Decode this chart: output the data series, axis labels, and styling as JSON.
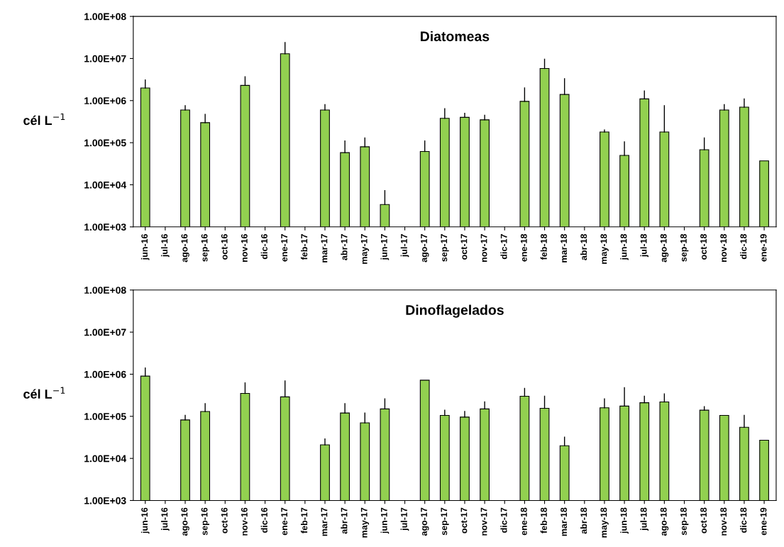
{
  "chart_data": [
    {
      "type": "bar",
      "title": "Diatomeas",
      "ylabel": "cél L$^{−1}$",
      "log": true,
      "color": "#92d050",
      "grid": false,
      "legend": false,
      "categories": [
        "jun-16",
        "jul-16",
        "ago-16",
        "sep-16",
        "oct-16",
        "nov-16",
        "dic-16",
        "ene-17",
        "feb-17",
        "mar-17",
        "abr-17",
        "may-17",
        "jun-17",
        "jul-17",
        "ago-17",
        "sep-17",
        "oct-17",
        "nov-17",
        "dic-17",
        "ene-18",
        "feb-18",
        "mar-18",
        "abr-18",
        "may-18",
        "jun-18",
        "jul-18",
        "ago-18",
        "sep-18",
        "oct-18",
        "nov-18",
        "dic-18",
        "ene-19"
      ],
      "values": [
        2000000,
        null,
        600000,
        300000,
        null,
        2300000,
        null,
        13000000,
        null,
        600000,
        58000,
        80000,
        3400,
        null,
        62000,
        380000,
        400000,
        350000,
        null,
        960000,
        5800000,
        1400000,
        null,
        180000,
        50000,
        1100000,
        180000,
        null,
        68000,
        600000,
        700000,
        37000
      ],
      "errors": [
        [
          2000000,
          3100000
        ],
        null,
        [
          600000,
          760000
        ],
        [
          300000,
          470000
        ],
        null,
        [
          2300000,
          3700000
        ],
        null,
        [
          13000000,
          24000000
        ],
        null,
        [
          600000,
          800000
        ],
        [
          58000,
          110000
        ],
        [
          80000,
          130000
        ],
        [
          3400,
          7300
        ],
        null,
        [
          62000,
          110000
        ],
        [
          380000,
          640000
        ],
        [
          400000,
          500000
        ],
        [
          350000,
          450000
        ],
        null,
        [
          960000,
          2000000
        ],
        [
          5800000,
          9600000
        ],
        [
          1400000,
          3300000
        ],
        null,
        [
          180000,
          200000
        ],
        [
          50000,
          105000
        ],
        [
          1100000,
          1700000
        ],
        [
          180000,
          760000
        ],
        null,
        [
          68000,
          130000
        ],
        [
          600000,
          800000
        ],
        [
          700000,
          1100000
        ],
        null
      ],
      "ylim": [
        1000,
        100000000
      ],
      "yticks": [
        {
          "value": 1000,
          "label": "1.00E+03"
        },
        {
          "value": 10000,
          "label": "1.00E+04"
        },
        {
          "value": 100000,
          "label": "1.00E+05"
        },
        {
          "value": 1000000,
          "label": "1.00E+06"
        },
        {
          "value": 10000000,
          "label": "1.00E+07"
        },
        {
          "value": 100000000,
          "label": "1.00E+08"
        }
      ]
    },
    {
      "type": "bar",
      "title": "Dinoflagelados",
      "ylabel": "cél L$^{−1}$",
      "log": true,
      "color": "#92d050",
      "grid": false,
      "legend": false,
      "categories": [
        "jun-16",
        "jul-16",
        "ago-16",
        "sep-16",
        "oct-16",
        "nov-16",
        "dic-16",
        "ene-17",
        "feb-17",
        "mar-17",
        "abr-17",
        "may-17",
        "jun-17",
        "jul-17",
        "ago-17",
        "sep-17",
        "oct-17",
        "nov-17",
        "dic-17",
        "ene-18",
        "feb-18",
        "mar-18",
        "abr-18",
        "may-18",
        "jun-18",
        "jul-18",
        "ago-18",
        "sep-18",
        "oct-18",
        "nov-18",
        "dic-18",
        "ene-19"
      ],
      "values": [
        900000,
        null,
        82000,
        130000,
        null,
        350000,
        null,
        290000,
        null,
        21000,
        120000,
        70000,
        150000,
        null,
        720000,
        105000,
        96000,
        150000,
        null,
        300000,
        155000,
        20000,
        null,
        160000,
        175000,
        210000,
        220000,
        null,
        140000,
        105000,
        55000,
        27000
      ],
      "errors": [
        [
          900000,
          1400000
        ],
        null,
        [
          82000,
          105000
        ],
        [
          130000,
          200000
        ],
        null,
        [
          350000,
          620000
        ],
        null,
        [
          290000,
          690000
        ],
        null,
        [
          21000,
          29000
        ],
        [
          120000,
          200000
        ],
        [
          70000,
          120000
        ],
        [
          150000,
          260000
        ],
        null,
        null,
        [
          105000,
          140000
        ],
        [
          96000,
          130000
        ],
        [
          150000,
          220000
        ],
        null,
        [
          300000,
          460000
        ],
        [
          155000,
          300000
        ],
        [
          20000,
          32000
        ],
        null,
        [
          160000,
          260000
        ],
        [
          175000,
          480000
        ],
        [
          210000,
          300000
        ],
        [
          220000,
          340000
        ],
        null,
        [
          140000,
          170000
        ],
        null,
        [
          55000,
          105000
        ],
        null
      ],
      "ylim": [
        1000,
        100000000
      ],
      "yticks": [
        {
          "value": 1000,
          "label": "1.00E+03"
        },
        {
          "value": 10000,
          "label": "1.00E+04"
        },
        {
          "value": 100000,
          "label": "1.00E+05"
        },
        {
          "value": 1000000,
          "label": "1.00E+06"
        },
        {
          "value": 10000000,
          "label": "1.00E+07"
        },
        {
          "value": 100000000,
          "label": "1.00E+08"
        }
      ]
    }
  ]
}
